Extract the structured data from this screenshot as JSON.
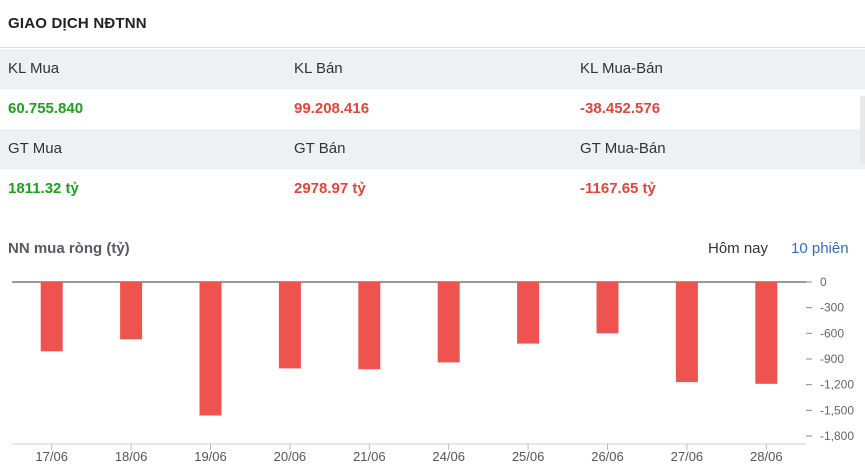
{
  "header": {
    "title": "GIAO DỊCH NĐTNN"
  },
  "stats": {
    "kl_labels": [
      "KL Mua",
      "KL Bán",
      "KL Mua-Bán"
    ],
    "kl_values": [
      "60.755.840",
      "99.208.416",
      "-38.452.576"
    ],
    "gt_labels": [
      "GT Mua",
      "GT Bán",
      "GT Mua-Bán"
    ],
    "gt_values": [
      "1811.32 tỷ",
      "2978.97 tỷ",
      "-1167.65 tỷ"
    ]
  },
  "colors": {
    "positive": "#1fa01f",
    "negative": "#e2453a",
    "bar": "#ef5350",
    "tab_active": "#2f6bc2"
  },
  "chart_header": {
    "title": "NN mua ròng (tỷ)",
    "tab_today": "Hôm nay",
    "tab_10": "10 phiên"
  },
  "chart_data": {
    "type": "bar",
    "categories": [
      "17/06",
      "18/06",
      "19/06",
      "20/06",
      "21/06",
      "24/06",
      "25/06",
      "26/06",
      "27/06",
      "28/06"
    ],
    "values": [
      -810,
      -670,
      -1560,
      -1010,
      -1020,
      -940,
      -720,
      -600,
      -1170,
      -1190
    ],
    "yticks": [
      0,
      -300,
      -600,
      -900,
      -1200,
      -1500,
      -1800
    ],
    "ytick_labels": [
      "0",
      "-300",
      "-600",
      "-900",
      "-1,200",
      "-1,500",
      "-1,800"
    ],
    "ylim": [
      -1800,
      0
    ],
    "title": "NN mua ròng (tỷ)",
    "grid": false
  }
}
